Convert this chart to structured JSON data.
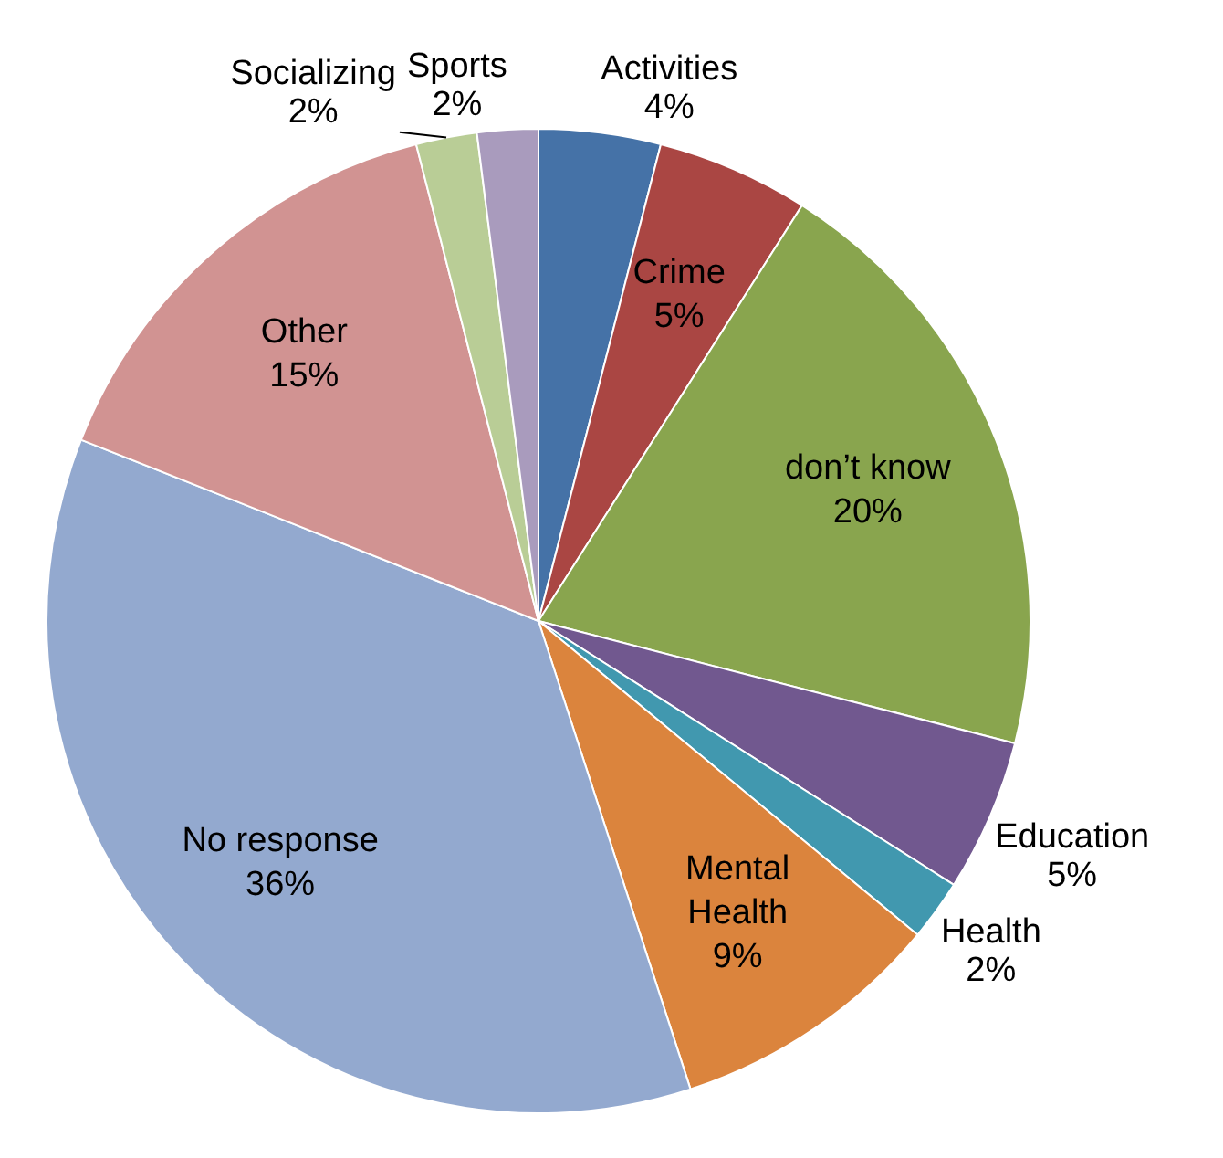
{
  "chart_data": {
    "type": "pie",
    "categories": [
      "Activities",
      "Crime",
      "don’t know",
      "Education",
      "Health",
      "Mental Health",
      "No response",
      "Other",
      "Socializing",
      "Sports"
    ],
    "values": [
      4,
      5,
      20,
      5,
      2,
      9,
      36,
      15,
      2,
      2
    ],
    "value_labels": [
      "4%",
      "5%",
      "20%",
      "5%",
      "2%",
      "9%",
      "36%",
      "15%",
      "2%",
      "2%"
    ],
    "colors": [
      "#4572a7",
      "#aa4643",
      "#89a54e",
      "#71588f",
      "#4198af",
      "#db843d",
      "#93a9cf",
      "#d19392",
      "#b9cd96",
      "#a99bbd"
    ],
    "legend": false
  }
}
